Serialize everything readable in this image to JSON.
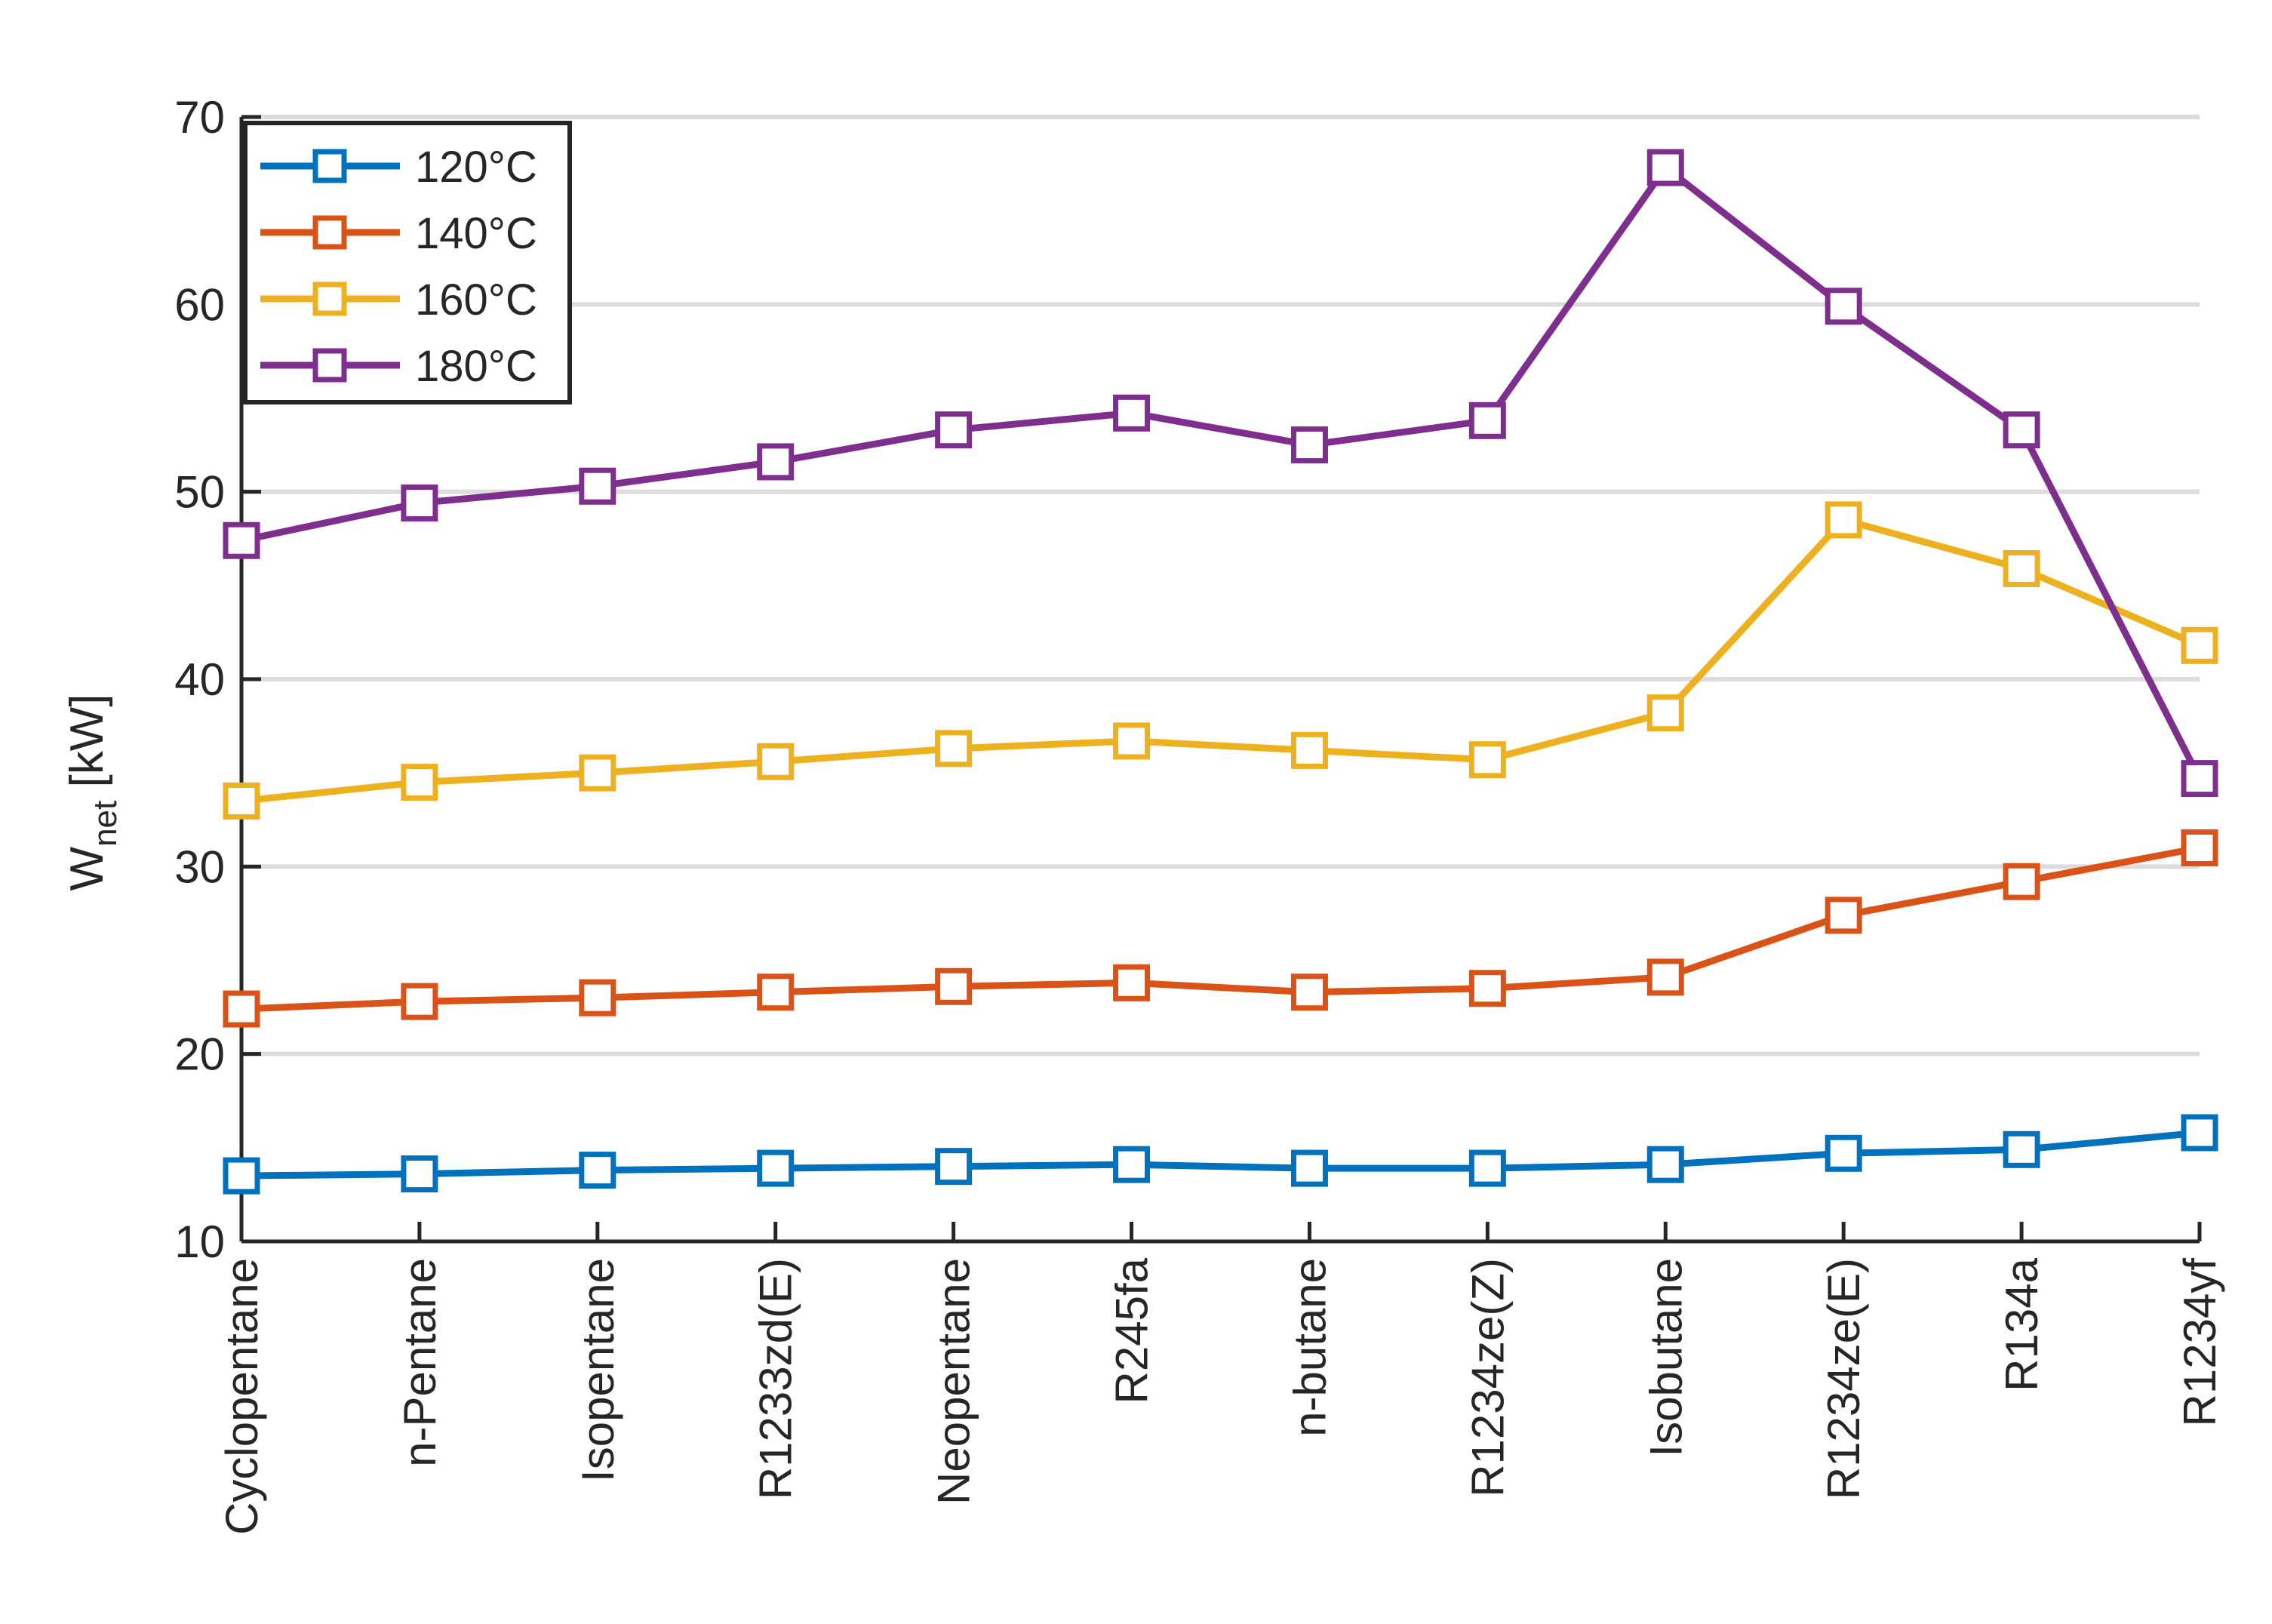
{
  "chart_data": {
    "type": "line",
    "title": "",
    "xlabel": "",
    "ylabel": {
      "main": "W",
      "subscript": "net",
      "unit": " [kW]"
    },
    "ylim": [
      10,
      70
    ],
    "yticks": [
      "10",
      "20",
      "30",
      "40",
      "50",
      "60",
      "70"
    ],
    "grid": "horizontal",
    "legend_position": "top-left",
    "categories": [
      "Cyclopentane",
      "n-Pentane",
      "Isopentane",
      "R1233zd(E)",
      "Neopentane",
      "R245fa",
      "n-butane",
      "R1234ze(Z)",
      "Isobutane",
      "R1234ze(E)",
      "R134a",
      "R1234yf"
    ],
    "series": [
      {
        "name": "120°C",
        "color": "#0072BD",
        "values": [
          13.5,
          13.6,
          13.8,
          13.9,
          14.0,
          14.1,
          13.9,
          13.9,
          14.1,
          14.7,
          14.9,
          15.8
        ]
      },
      {
        "name": "140°C",
        "color": "#D95319",
        "values": [
          22.4,
          22.8,
          23.0,
          23.3,
          23.6,
          23.8,
          23.3,
          23.5,
          24.1,
          27.4,
          29.2,
          31.0
        ]
      },
      {
        "name": "160°C",
        "color": "#EDB120",
        "values": [
          33.5,
          34.5,
          35.0,
          35.6,
          36.3,
          36.7,
          36.2,
          35.7,
          38.2,
          48.5,
          45.9,
          41.8
        ]
      },
      {
        "name": "180°C",
        "color": "#7E2F8E",
        "values": [
          47.4,
          49.4,
          50.3,
          51.6,
          53.3,
          54.2,
          52.5,
          53.8,
          67.3,
          59.9,
          53.3,
          34.7
        ]
      }
    ]
  }
}
